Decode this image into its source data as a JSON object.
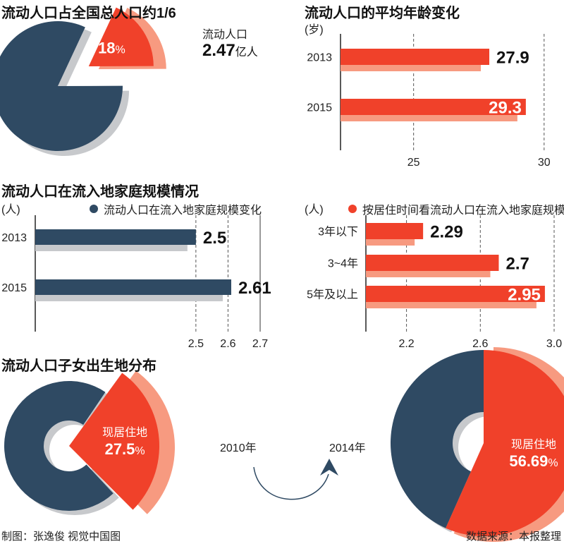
{
  "colors": {
    "navy": "#2f4a63",
    "red": "#f0412a",
    "salmon": "#f79a80",
    "gray": "#c7c9cc"
  },
  "header": {
    "title_share": "流动人口占全国总人口约1/6",
    "title_age": "流动人口的平均年龄变化",
    "unit_age": "(岁)",
    "title_family": "流动人口在流入地家庭规模情况",
    "unit_family_left": "(人)",
    "legend_family_left": "流动人口在流入地家庭规模变化",
    "unit_family_right": "(人)",
    "legend_family_right": "按居住时间看流动人口在流入地家庭规模",
    "title_birth": "流动人口子女出生地分布"
  },
  "pie_share": {
    "label": "流动人口",
    "value_num": "2.47",
    "value_unit": "亿人",
    "pct_num": "18",
    "pct_sign": "%"
  },
  "birth": {
    "year_left": "2010年",
    "year_right": "2014年",
    "label_left": "现居住地",
    "pct_left_num": "27.5",
    "pct_left_sign": "%",
    "label_right": "现居住地",
    "pct_right_num": "56.69",
    "pct_right_sign": "%"
  },
  "footer": {
    "left": "制图：张逸俊  视觉中国图",
    "right": "数据来源：本报整理"
  },
  "chart_data": [
    {
      "type": "pie",
      "title": "流动人口占全国总人口约1/6",
      "slices": [
        {
          "label": "流动人口",
          "value": 18
        },
        {
          "label": "",
          "value": 82
        }
      ],
      "annotation": "2.47亿人"
    },
    {
      "type": "bar",
      "orientation": "horizontal",
      "title": "流动人口的平均年龄变化",
      "unit": "(岁)",
      "categories": [
        "2013",
        "2015"
      ],
      "values": [
        27.9,
        29.3
      ],
      "data_labels": [
        "27.9",
        "29.3"
      ],
      "xlim": [
        22.2,
        30.6
      ],
      "xticks": [
        25,
        30
      ],
      "xtick_labels": [
        "25",
        "30"
      ]
    },
    {
      "type": "bar",
      "orientation": "horizontal",
      "title": "流动人口在流入地家庭规模情况",
      "legend": "流动人口在流入地家庭规模变化",
      "unit": "(人)",
      "categories": [
        "2013",
        "2015"
      ],
      "values": [
        2.5,
        2.61
      ],
      "data_labels": [
        "2.5",
        "2.61"
      ],
      "xlim": [
        2.0,
        2.7
      ],
      "xticks": [
        2.5,
        2.6,
        2.7
      ],
      "xtick_labels": [
        "2.5",
        "2.6",
        "2.7"
      ]
    },
    {
      "type": "bar",
      "orientation": "horizontal",
      "legend": "按居住时间看流动人口在流入地家庭规模",
      "unit": "(人)",
      "categories": [
        "3年以下",
        "3~4年",
        "5年及以上"
      ],
      "values": [
        2.29,
        2.7,
        2.95
      ],
      "data_labels": [
        "2.29",
        "2.7",
        "2.95"
      ],
      "xlim": [
        1.98,
        3.0
      ],
      "xticks": [
        2.2,
        2.6,
        3.0
      ],
      "xtick_labels": [
        "2.2",
        "2.6",
        "3.0"
      ]
    },
    {
      "type": "pie",
      "title": "流动人口子女出生地分布",
      "year": "2010年",
      "slices": [
        {
          "label": "现居住地",
          "value": 27.5
        },
        {
          "label": "",
          "value": 72.5
        }
      ]
    },
    {
      "type": "pie",
      "year": "2014年",
      "slices": [
        {
          "label": "现居住地",
          "value": 56.69
        },
        {
          "label": "",
          "value": 43.31
        }
      ]
    }
  ]
}
